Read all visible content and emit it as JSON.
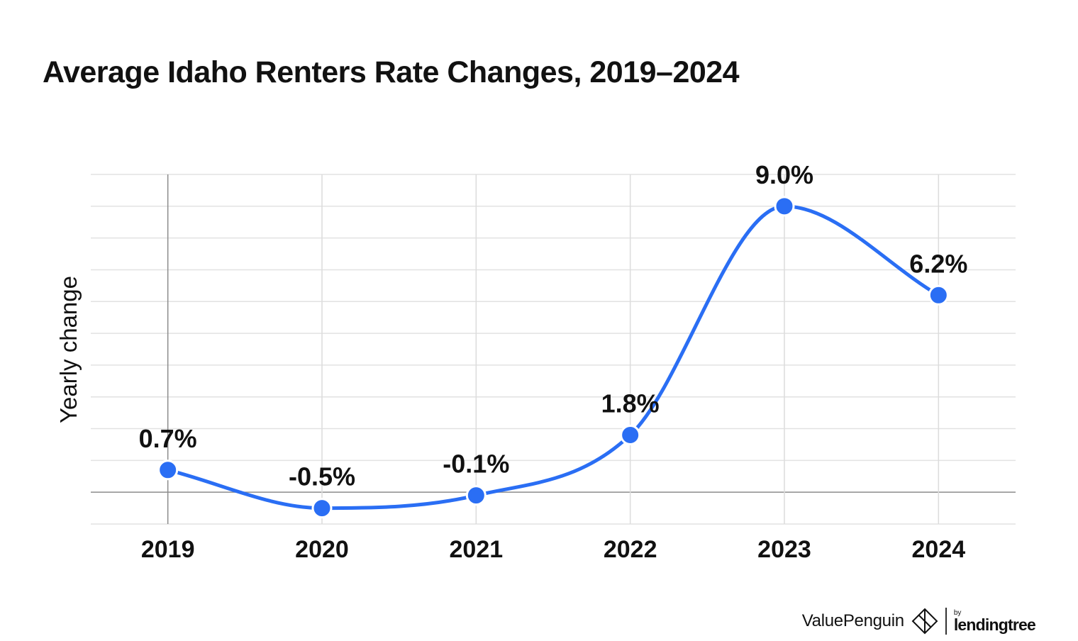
{
  "title": "Average Idaho Renters Rate Changes, 2019–2024",
  "chart_data": {
    "type": "line",
    "title": "Average Idaho Renters Rate Changes, 2019–2024",
    "xlabel": "",
    "ylabel": "Yearly change",
    "categories": [
      "2019",
      "2020",
      "2021",
      "2022",
      "2023",
      "2024"
    ],
    "series": [
      {
        "values": [
          0.7,
          -0.5,
          -0.1,
          1.8,
          9.0,
          6.2
        ],
        "labels": [
          "0.7%",
          "-0.5%",
          "-0.1%",
          "1.8%",
          "9.0%",
          "6.2%"
        ],
        "color": "#2a6ef4"
      }
    ],
    "ylim": [
      -1,
      10
    ],
    "ytick_step": 1,
    "grid": true,
    "smooth": true,
    "legend": "none"
  },
  "branding": {
    "brand": "ValuePenguin",
    "by": "by",
    "partner": "lendingtree"
  }
}
